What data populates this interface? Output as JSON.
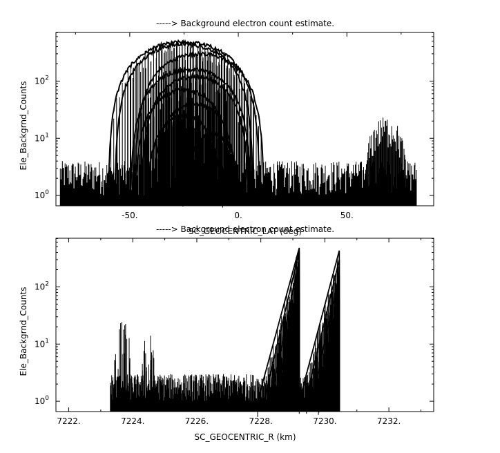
{
  "chart_data": [
    {
      "type": "scatter",
      "title": "-----> Background electron count estimate.",
      "xlabel": "SC_GEOCENTRIC_LAT (deg)",
      "ylabel": "Ele_Backgrnd_Counts",
      "xlim": [
        -84,
        90
      ],
      "ylim_log10": [
        -0.18,
        2.85
      ],
      "y_scale": "log",
      "xticks": [
        -50,
        0,
        50
      ],
      "xtick_labels": [
        "-50.",
        "0.",
        "50."
      ],
      "yticks": [
        1,
        10,
        100
      ],
      "ytick_labels": [
        "10^0",
        "10^1",
        "10^2"
      ],
      "data_extent_x": [
        -82,
        82
      ],
      "noise_floor": {
        "min": 1,
        "max": 4,
        "x_range": [
          -82,
          82
        ]
      },
      "series": [
        {
          "peak_x": -25,
          "half_width": 35,
          "peak_y": 480
        },
        {
          "peak_x": -25,
          "half_width": 32,
          "peak_y": 440
        },
        {
          "peak_x": -18,
          "half_width": 30,
          "peak_y": 300
        },
        {
          "peak_x": -22,
          "half_width": 28,
          "peak_y": 160
        },
        {
          "peak_x": -20,
          "half_width": 25,
          "peak_y": 120
        },
        {
          "peak_x": -25,
          "half_width": 23,
          "peak_y": 70
        },
        {
          "peak_x": -20,
          "half_width": 20,
          "peak_y": 40
        },
        {
          "peak_x": -25,
          "half_width": 18,
          "peak_y": 25
        },
        {
          "peak_x": -12,
          "half_width": 14,
          "peak_y": 12
        }
      ],
      "bump": {
        "peak_x": 68,
        "half_width": 10,
        "peak_y": 20
      }
    },
    {
      "type": "scatter",
      "title": "-----> Background electron count estimate.",
      "xlabel": "SC_GEOCENTRIC_R (km)",
      "ylabel": "Ele_Backgrnd_Counts",
      "xlim": [
        7221.6,
        7233.4
      ],
      "ylim_log10": [
        -0.18,
        2.85
      ],
      "y_scale": "log",
      "xticks": [
        7222,
        7224,
        7226,
        7228,
        7230,
        7232
      ],
      "xtick_labels": [
        "7222.",
        "7224.",
        "7226.",
        "7228.",
        "7230.",
        "7232."
      ],
      "yticks": [
        1,
        10,
        100
      ],
      "ytick_labels": [
        "10^0",
        "10^1",
        "10^2"
      ],
      "data_extent_x": [
        7223.3,
        7230.45
      ],
      "noise_floor": {
        "min": 1,
        "max": 3,
        "x_range": [
          7223.3,
          7230.45
        ]
      },
      "ramps_a": {
        "x_start": [
          7227.9,
          7228.1,
          7228.3,
          7228.5,
          7228.7
        ],
        "x_end": 7229.2,
        "peak_y": [
          480,
          420,
          300,
          160,
          80
        ]
      },
      "ramps_b": {
        "x_start": [
          7229.2,
          7229.4,
          7229.6,
          7229.8
        ],
        "x_end": 7230.45,
        "peak_y": [
          430,
          300,
          160,
          60
        ]
      },
      "spikes": [
        {
          "x": 7223.7,
          "y": 25
        },
        {
          "x": 7224.5,
          "y": 15
        }
      ]
    }
  ]
}
